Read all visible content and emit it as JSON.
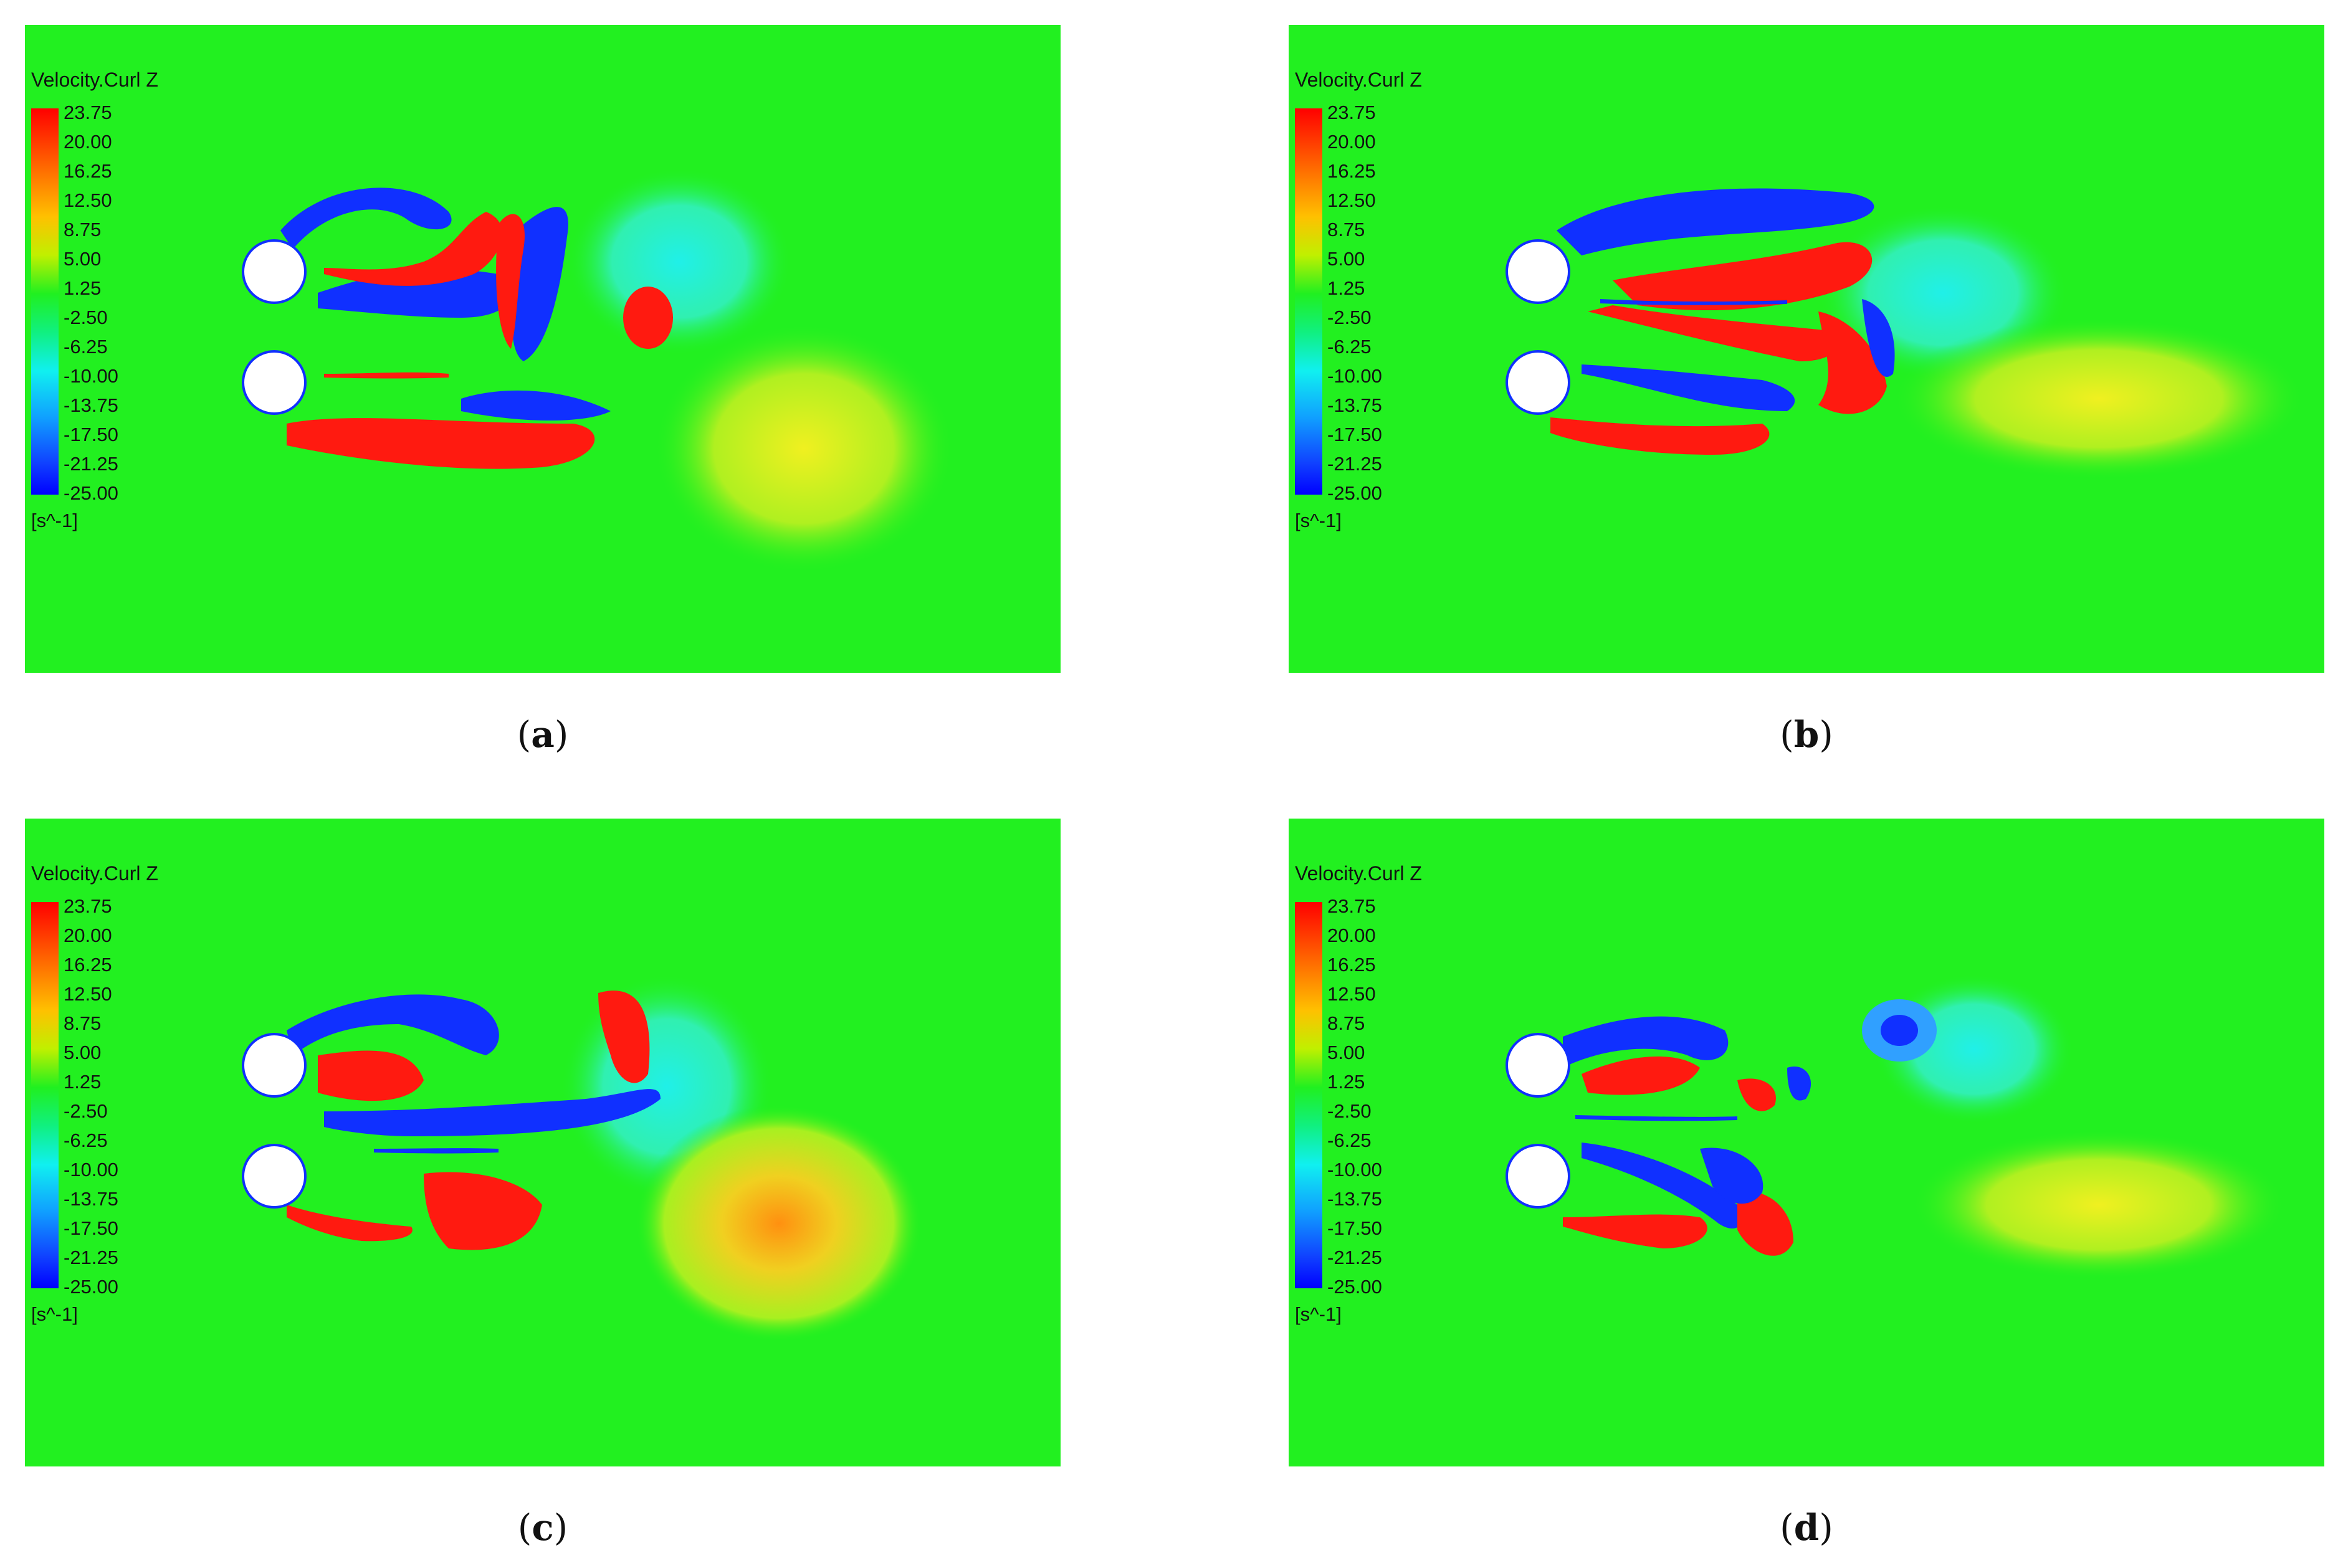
{
  "legend": {
    "title": "Velocity.Curl Z",
    "unit": "[s^-1]",
    "ticks": [
      "23.75",
      "20.00",
      "16.25",
      "12.50",
      "8.75",
      "5.00",
      "1.25",
      "-2.50",
      "-6.25",
      "-10.00",
      "-13.75",
      "-17.50",
      "-21.25",
      "-25.00"
    ],
    "range": [
      -25.0,
      23.75
    ]
  },
  "colors": {
    "background": "#22f020",
    "positive_vortex": "#ff1a10",
    "negative_vortex": "#1030ff",
    "cyan_region": "#30f0d0",
    "yellow_region": "#d8f020",
    "cylinder": "#ffffff"
  },
  "panels": [
    {
      "id": "a",
      "caption_open": "(",
      "caption_letter": "a",
      "caption_close": ")"
    },
    {
      "id": "b",
      "caption_open": "(",
      "caption_letter": "b",
      "caption_close": ")"
    },
    {
      "id": "c",
      "caption_open": "(",
      "caption_letter": "c",
      "caption_close": ")"
    },
    {
      "id": "d",
      "caption_open": "(",
      "caption_letter": "d",
      "caption_close": ")"
    }
  ]
}
